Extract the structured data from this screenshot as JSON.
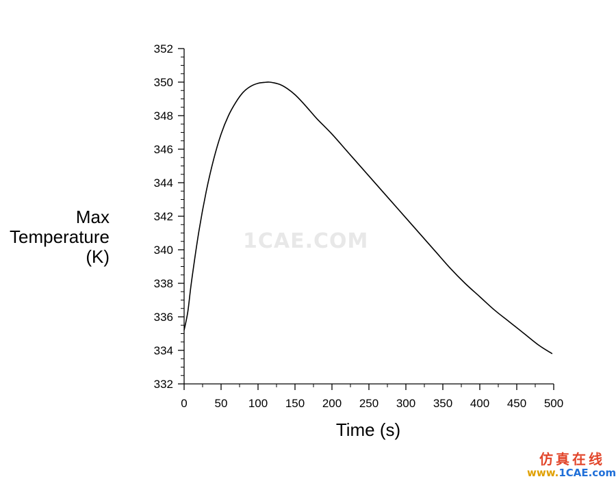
{
  "chart_data": {
    "type": "line",
    "xlabel": "Time (s)",
    "ylabel_lines": [
      "Max",
      "Temperature",
      "(K)"
    ],
    "xlim": [
      0,
      500
    ],
    "ylim": [
      332,
      352
    ],
    "xticks": [
      0,
      50,
      100,
      150,
      200,
      250,
      300,
      350,
      400,
      450,
      500
    ],
    "yticks": [
      332,
      334,
      336,
      338,
      340,
      342,
      344,
      346,
      348,
      350,
      352
    ],
    "grid": false,
    "series": [
      {
        "color": "#000000",
        "x": [
          0,
          5,
          10,
          20,
          30,
          40,
          50,
          60,
          70,
          80,
          90,
          100,
          110,
          115,
          120,
          130,
          140,
          150,
          160,
          170,
          180,
          200,
          220,
          240,
          260,
          280,
          300,
          320,
          340,
          360,
          380,
          400,
          420,
          440,
          460,
          480,
          498
        ],
        "y": [
          335.2,
          336.3,
          338.1,
          341.1,
          343.5,
          345.4,
          346.9,
          348.0,
          348.8,
          349.4,
          349.75,
          349.93,
          349.99,
          350.0,
          349.97,
          349.85,
          349.6,
          349.25,
          348.8,
          348.3,
          347.8,
          346.9,
          345.9,
          344.9,
          343.9,
          342.9,
          341.9,
          340.9,
          339.9,
          338.9,
          338.0,
          337.2,
          336.4,
          335.7,
          335.0,
          334.3,
          333.8
        ]
      }
    ]
  },
  "watermark": "1CAE.COM",
  "logo": {
    "chinese": "仿真在线",
    "www": "www.",
    "url": "1CAE.com"
  }
}
